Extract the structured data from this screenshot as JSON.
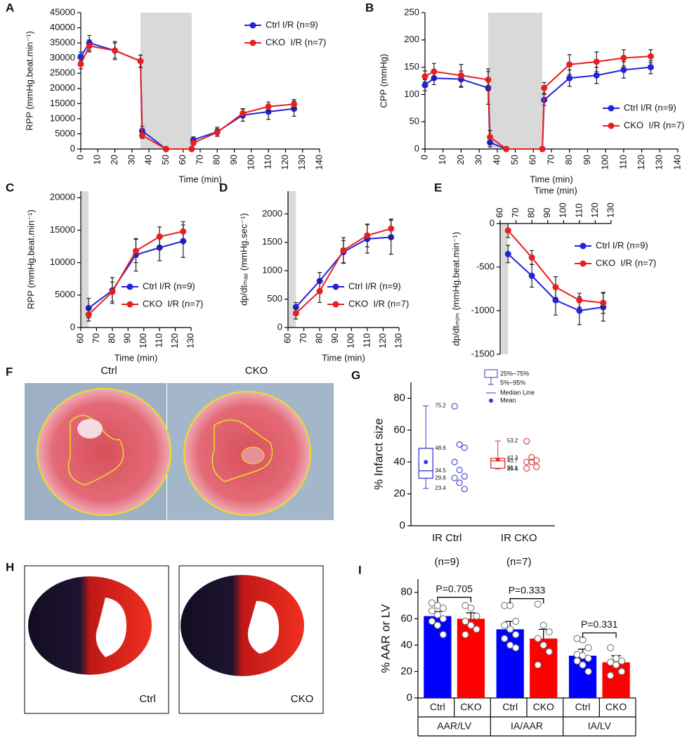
{
  "chart_data": [
    {
      "type": "line",
      "panel_label": "A",
      "xlabel": "Time (min)",
      "ylabel": "RPP (mmHg.beat.min⁻¹)",
      "xlim": [
        0,
        140
      ],
      "xticks": [
        0,
        10,
        20,
        30,
        40,
        50,
        60,
        70,
        80,
        90,
        100,
        110,
        120,
        130,
        140
      ],
      "ylim": [
        0,
        45000
      ],
      "yticks": [
        0,
        5000,
        10000,
        15000,
        20000,
        25000,
        30000,
        35000,
        40000,
        45000
      ],
      "x": [
        0,
        5,
        20,
        35,
        36,
        50,
        65,
        66,
        80,
        95,
        110,
        125
      ],
      "shade": [
        35,
        65
      ],
      "legend": "upper right",
      "series": [
        {
          "name": "Ctrl I/R (n=9)",
          "color": "#2323d9",
          "values": [
            30500,
            35000,
            32500,
            29000,
            6000,
            0,
            0,
            3000,
            5700,
            11200,
            12300,
            13300
          ],
          "errors": [
            1500,
            2500,
            2500,
            2000,
            1500,
            0,
            0,
            1000,
            1500,
            2000,
            2500,
            2500
          ]
        },
        {
          "name": "CKO  I/R (n=7)",
          "color": "#e62020",
          "values": [
            28000,
            34000,
            32500,
            29000,
            4500,
            0,
            0,
            2000,
            5500,
            11800,
            14000,
            14800
          ],
          "errors": [
            1500,
            2000,
            3000,
            2000,
            1000,
            0,
            0,
            800,
            1200,
            1500,
            1500,
            1500
          ]
        }
      ]
    },
    {
      "type": "line",
      "panel_label": "B",
      "xlabel": "Time (min)",
      "ylabel": "CPP (mmHg)",
      "xlim": [
        0,
        140
      ],
      "xticks": [
        0,
        10,
        20,
        30,
        40,
        50,
        60,
        70,
        80,
        90,
        100,
        110,
        120,
        130,
        140
      ],
      "ylim": [
        0,
        250
      ],
      "yticks": [
        0,
        50,
        100,
        150,
        200,
        250
      ],
      "x": [
        0,
        5,
        20,
        35,
        36,
        45,
        65,
        66,
        80,
        95,
        110,
        125
      ],
      "shade": [
        35,
        65
      ],
      "legend": "lower right",
      "series": [
        {
          "name": "Ctrl I/R (n=9)",
          "color": "#2323d9",
          "values": [
            117,
            130,
            128,
            112,
            12,
            0,
            0,
            90,
            130,
            135,
            145,
            150
          ],
          "errors": [
            10,
            12,
            15,
            30,
            8,
            0,
            0,
            10,
            15,
            15,
            15,
            12
          ]
        },
        {
          "name": "CKO  I/R (n=7)",
          "color": "#e62020",
          "values": [
            133,
            142,
            135,
            127,
            22,
            0,
            0,
            112,
            155,
            160,
            167,
            170
          ],
          "errors": [
            10,
            15,
            20,
            20,
            12,
            0,
            0,
            10,
            18,
            18,
            15,
            12
          ]
        }
      ]
    },
    {
      "type": "line",
      "panel_label": "C",
      "xlabel": "Time (min)",
      "ylabel": "RPP (mmHg.beat.min⁻¹)",
      "xlim": [
        60,
        130
      ],
      "xticks": [
        60,
        70,
        80,
        90,
        100,
        110,
        120,
        130
      ],
      "ylim": [
        0,
        21000
      ],
      "yticks": [
        0,
        5000,
        10000,
        15000,
        20000
      ],
      "x": [
        65,
        80,
        95,
        110,
        125
      ],
      "shade": [
        60,
        65
      ],
      "legend": "lower right",
      "series": [
        {
          "name": "Ctrl I/R (n=9)",
          "color": "#2323d9",
          "values": [
            3000,
            5700,
            11200,
            12300,
            13300
          ],
          "errors": [
            1500,
            2000,
            2500,
            2000,
            2500
          ]
        },
        {
          "name": "CKO  I/R (n=7)",
          "color": "#e62020",
          "values": [
            2000,
            5500,
            11800,
            14000,
            14800
          ],
          "errors": [
            1000,
            1500,
            1800,
            1500,
            1500
          ]
        }
      ]
    },
    {
      "type": "line",
      "panel_label": "D",
      "xlabel": "Time (min)",
      "ylabel": "dp/dtₘₐₓ (mmHg.sec⁻¹)",
      "xlim": [
        60,
        130
      ],
      "xticks": [
        60,
        70,
        80,
        90,
        100,
        110,
        120,
        130
      ],
      "ylim": [
        0,
        2400
      ],
      "yticks": [
        0,
        500,
        1000,
        1500,
        2000
      ],
      "x": [
        65,
        80,
        95,
        110,
        125
      ],
      "shade": [
        60,
        65
      ],
      "legend": "lower right",
      "series": [
        {
          "name": "Ctrl I/R (n=9)",
          "color": "#2323d9",
          "values": [
            360,
            820,
            1330,
            1560,
            1590
          ],
          "errors": [
            80,
            150,
            200,
            250,
            300
          ]
        },
        {
          "name": "CKO  I/R (n=7)",
          "color": "#e62020",
          "values": [
            250,
            640,
            1360,
            1620,
            1740
          ],
          "errors": [
            100,
            200,
            220,
            200,
            170
          ]
        }
      ]
    },
    {
      "type": "line",
      "panel_label": "E",
      "xlabel": "Time (min)",
      "ylabel": "dp/dtₘᵢₘ (mmHg.beat.min⁻¹)",
      "xlim": [
        60,
        130
      ],
      "xticks": [
        60,
        70,
        80,
        90,
        100,
        110,
        120,
        130
      ],
      "xaxis_position": "top",
      "ylim": [
        -1500,
        0
      ],
      "yticks": [
        -1500,
        -1000,
        -500,
        0
      ],
      "x": [
        65,
        80,
        95,
        110,
        125
      ],
      "shade": [
        60,
        65
      ],
      "legend": "upper right",
      "series": [
        {
          "name": "Ctrl I/R (n=9)",
          "color": "#2323d9",
          "values": [
            -350,
            -600,
            -880,
            -1000,
            -960
          ],
          "errors": [
            100,
            130,
            170,
            160,
            160
          ]
        },
        {
          "name": "CKO  I/R (n=7)",
          "color": "#e62020",
          "values": [
            -80,
            -390,
            -730,
            -880,
            -910
          ],
          "errors": [
            80,
            80,
            120,
            80,
            120
          ]
        }
      ]
    },
    {
      "type": "box",
      "panel_label": "G",
      "ylabel": "% Infarct size",
      "ylim": [
        0,
        90
      ],
      "yticks": [
        0,
        20,
        40,
        60,
        80
      ],
      "categories": [
        "IR Ctrl",
        "IR CKO"
      ],
      "category_notes": [
        "(n=9)",
        "(n=7)"
      ],
      "box_legend": [
        "25%~75%",
        "5%~95%",
        "Median Line",
        "Mean"
      ],
      "groups": [
        {
          "color": "#3a3ad0",
          "whislo": 23.4,
          "q1": 29.8,
          "med": 34.5,
          "q3": 48.6,
          "whishi": 75.2,
          "mean": 40,
          "points": [
            75,
            51,
            49,
            40,
            35,
            31,
            30,
            27,
            23
          ]
        },
        {
          "color": "#e03030",
          "whislo": 35.6,
          "q1": 36.1,
          "med": 40.7,
          "q3": 42.3,
          "whishi": 53.2,
          "mean": 41.5,
          "points": [
            53,
            43,
            41,
            40,
            40,
            37,
            36
          ]
        }
      ]
    },
    {
      "type": "bar",
      "panel_label": "I",
      "ylabel": "% AAR or LV",
      "ylim": [
        0,
        90
      ],
      "yticks": [
        0,
        20,
        40,
        60,
        80
      ],
      "groups": [
        "AAR/LV",
        "IA/AAR",
        "IA/LV"
      ],
      "p_labels": [
        "P=0.705",
        "P=0.333",
        "P=0.331"
      ],
      "series": [
        {
          "name": "Ctrl",
          "color": "#0000ff",
          "values": [
            62,
            52,
            32
          ],
          "errors": [
            3.5,
            6,
            5
          ],
          "points": [
            [
              72,
              70,
              68,
              66,
              63,
              60,
              58,
              55,
              48
            ],
            [
              70,
              70,
              58,
              55,
              52,
              48,
              45,
              40,
              38
            ],
            [
              45,
              44,
              38,
              33,
              32,
              30,
              28,
              25,
              20
            ]
          ]
        },
        {
          "name": "CKO",
          "color": "#ff0000",
          "values": [
            60,
            45,
            27
          ],
          "errors": [
            4.5,
            7,
            5
          ],
          "points": [
            [
              70,
              68,
              62,
              58,
              55,
              52,
              48
            ],
            [
              71,
              55,
              50,
              45,
              40,
              35,
              25
            ],
            [
              38,
              30,
              28,
              27,
              25,
              20,
              17
            ]
          ]
        }
      ]
    }
  ],
  "images": [
    {
      "panel_label": "F",
      "labels": [
        "Ctrl",
        "CKO"
      ]
    },
    {
      "panel_label": "H",
      "labels": [
        "Ctrl",
        "CKO"
      ]
    }
  ]
}
